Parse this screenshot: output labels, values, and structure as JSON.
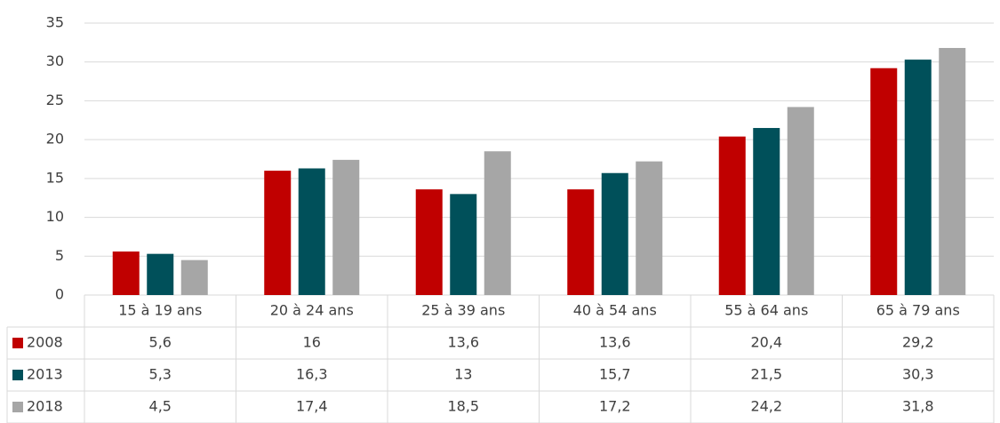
{
  "chart_data": {
    "type": "bar",
    "categories": [
      "15 à 19 ans",
      "20 à 24 ans",
      "25 à 39 ans",
      "40 à 54 ans",
      "55 à 64 ans",
      "65 à 79 ans"
    ],
    "series": [
      {
        "name": "2008",
        "color": "#c00000",
        "values": [
          5.6,
          16,
          13.6,
          13.6,
          20.4,
          29.2
        ],
        "value_labels": [
          "5,6",
          "16",
          "13,6",
          "13,6",
          "20,4",
          "29,2"
        ]
      },
      {
        "name": "2013",
        "color": "#00505a",
        "values": [
          5.3,
          16.3,
          13,
          15.7,
          21.5,
          30.3
        ],
        "value_labels": [
          "5,3",
          "16,3",
          "13",
          "15,7",
          "21,5",
          "30,3"
        ]
      },
      {
        "name": "2018",
        "color": "#a6a6a6",
        "values": [
          4.5,
          17.4,
          18.5,
          17.2,
          24.2,
          31.8
        ],
        "value_labels": [
          "4,5",
          "17,4",
          "18,5",
          "17,2",
          "24,2",
          "31,8"
        ]
      }
    ],
    "ylim": [
      0,
      35
    ],
    "yticks": [
      0,
      5,
      10,
      15,
      20,
      25,
      30,
      35
    ],
    "grid": true
  }
}
